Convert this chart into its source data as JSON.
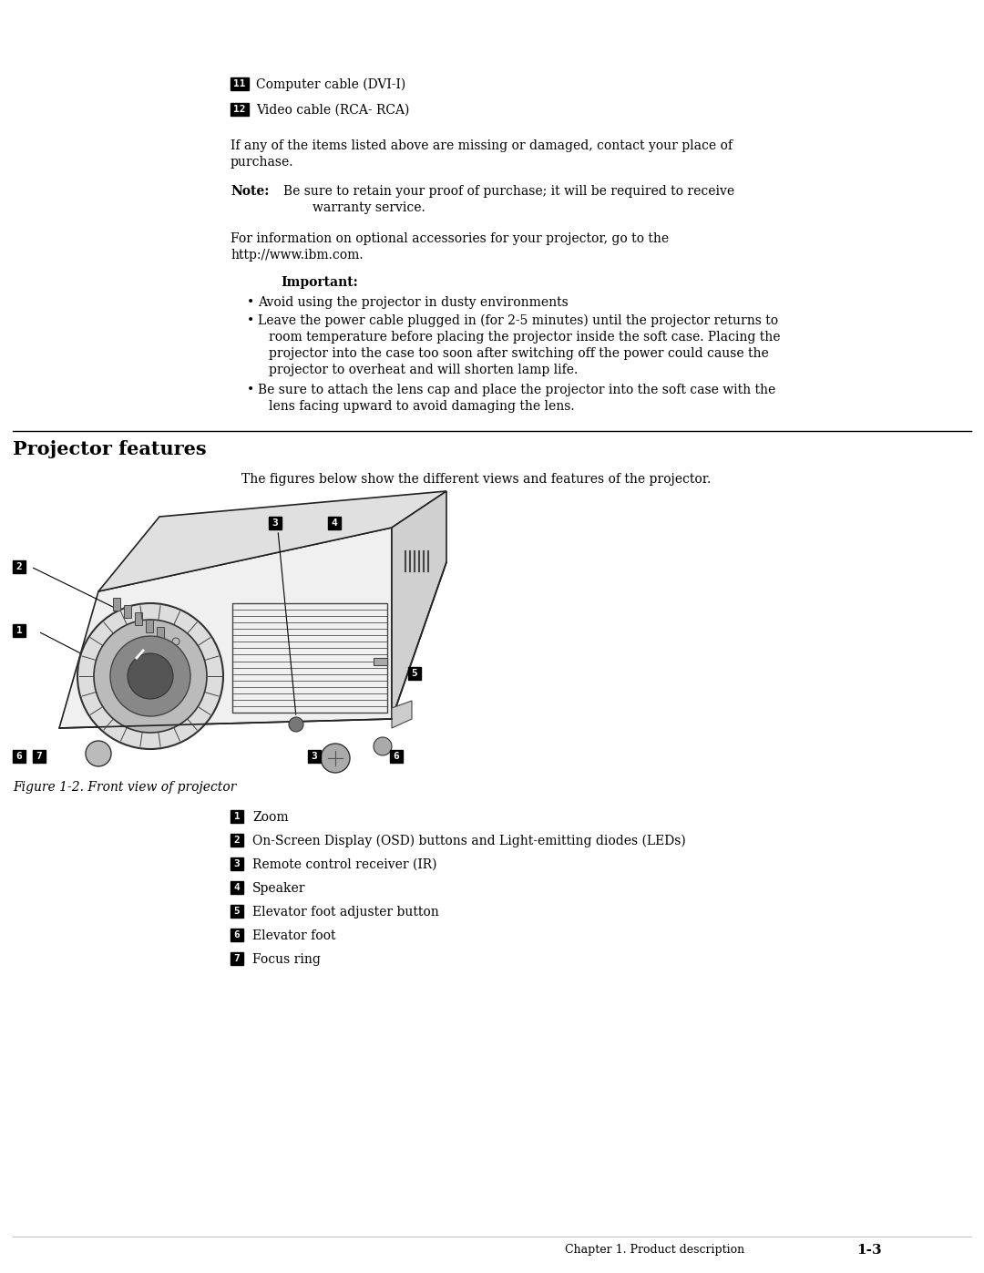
{
  "bg_color": "#ffffff",
  "page_width": 10.8,
  "page_height": 13.97,
  "items_list": [
    {
      "num": "11",
      "text": "Computer cable (DVI-I)"
    },
    {
      "num": "12",
      "text": "Video cable (RCA- RCA)"
    }
  ],
  "para1_line1": "If any of the items listed above are missing or damaged, contact your place of",
  "para1_line2": "purchase.",
  "note_label": "Note:",
  "note_line1": "Be sure to retain your proof of purchase; it will be required to receive",
  "note_line2": "warranty service.",
  "para2_line1": "For information on optional accessories for your projector, go to the",
  "para2_line2": "http://www.ibm.com.",
  "important_label": "Important:",
  "bullet1": "Avoid using the projector in dusty environments",
  "bullet2_lines": [
    "Leave the power cable plugged in (for 2-5 minutes) until the projector returns to",
    "room temperature before placing the projector inside the soft case. Placing the",
    "projector into the case too soon after switching off the power could cause the",
    "projector to overheat and will shorten lamp life."
  ],
  "bullet3_lines": [
    "Be sure to attach the lens cap and place the projector into the soft case with the",
    "lens facing upward to avoid damaging the lens."
  ],
  "section_title": "Projector features",
  "figure_intro": "The figures below show the different views and features of the projector.",
  "figure_caption": "Figure 1-2. Front view of projector",
  "feature_list": [
    {
      "num": "1",
      "text": "Zoom"
    },
    {
      "num": "2",
      "text": "On-Screen Display (OSD) buttons and Light-emitting diodes (LEDs)"
    },
    {
      "num": "3",
      "text": "Remote control receiver (IR)"
    },
    {
      "num": "4",
      "text": "Speaker"
    },
    {
      "num": "5",
      "text": "Elevator foot adjuster button"
    },
    {
      "num": "6",
      "text": "Elevator foot"
    },
    {
      "num": "7",
      "text": "Focus ring"
    }
  ],
  "footer_text": "Chapter 1. Product description",
  "footer_page": "1-3",
  "label_bg": "#000000",
  "label_fg": "#ffffff",
  "text_color": "#000000"
}
